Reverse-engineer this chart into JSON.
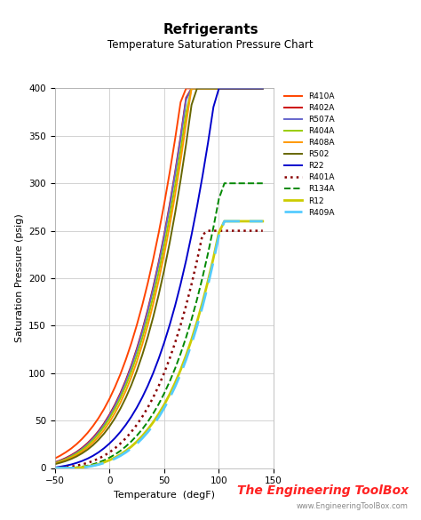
{
  "title": "Refrigerants",
  "subtitle": "Temperature Saturation Pressure Chart",
  "xlabel": "Temperature  (degF)",
  "ylabel": "Saturation Pressure (psig)",
  "xlim": [
    -50,
    150
  ],
  "ylim": [
    0,
    400
  ],
  "xticks": [
    -50,
    0,
    50,
    100,
    150
  ],
  "yticks": [
    0,
    50,
    100,
    150,
    200,
    250,
    300,
    350,
    400
  ],
  "series": [
    {
      "name": "R410A",
      "color": "#FF4400",
      "linestyle": "-",
      "linewidth": 1.4,
      "temps": [
        -50,
        -45,
        -40,
        -35,
        -30,
        -25,
        -20,
        -15,
        -10,
        -5,
        0,
        5,
        10,
        15,
        20,
        25,
        30,
        35,
        40,
        45,
        50,
        55,
        60,
        65,
        70,
        75,
        80,
        85,
        90,
        95,
        100,
        105,
        110,
        115,
        120,
        125,
        130
      ],
      "pressures": [
        10.0,
        13.0,
        16.5,
        20.5,
        25.2,
        30.7,
        37.0,
        44.3,
        52.6,
        62.1,
        72.9,
        85.2,
        98.9,
        114.4,
        131.6,
        150.7,
        171.7,
        194.8,
        220.2,
        247.9,
        278.2,
        311.2,
        346.9,
        385.5,
        400,
        400,
        400,
        400,
        400,
        400,
        400,
        400,
        400,
        400,
        400,
        400,
        400
      ]
    },
    {
      "name": "R402A",
      "color": "#CC0000",
      "linestyle": "-",
      "linewidth": 1.4,
      "temps": [
        -50,
        -45,
        -40,
        -35,
        -30,
        -25,
        -20,
        -15,
        -10,
        -5,
        0,
        5,
        10,
        15,
        20,
        25,
        30,
        35,
        40,
        45,
        50,
        55,
        60,
        65,
        70,
        75,
        80,
        85,
        90,
        95,
        100,
        105,
        110,
        115,
        120,
        125,
        130,
        135,
        140
      ],
      "pressures": [
        6.0,
        8.0,
        10.5,
        13.5,
        17.0,
        21.2,
        26.2,
        32.0,
        38.9,
        46.9,
        56.2,
        66.8,
        78.9,
        92.7,
        108.2,
        125.7,
        145.2,
        166.8,
        190.7,
        217.0,
        245.8,
        277.3,
        311.7,
        349.2,
        390.0,
        400,
        400,
        400,
        400,
        400,
        400,
        400,
        400,
        400,
        400,
        400,
        400,
        400,
        400
      ]
    },
    {
      "name": "R507A",
      "color": "#6666CC",
      "linestyle": "-",
      "linewidth": 1.4,
      "temps": [
        -50,
        -45,
        -40,
        -35,
        -30,
        -25,
        -20,
        -15,
        -10,
        -5,
        0,
        5,
        10,
        15,
        20,
        25,
        30,
        35,
        40,
        45,
        50,
        55,
        60,
        65,
        70,
        75,
        80,
        85,
        90,
        95,
        100,
        105,
        110,
        115,
        120,
        125,
        130,
        135,
        140
      ],
      "pressures": [
        5.5,
        7.5,
        9.8,
        12.7,
        16.2,
        20.3,
        25.2,
        31.0,
        37.8,
        45.8,
        55.0,
        65.5,
        77.5,
        91.2,
        106.7,
        124.1,
        143.5,
        165.1,
        188.9,
        215.2,
        243.9,
        275.4,
        309.7,
        347.2,
        387.9,
        400,
        400,
        400,
        400,
        400,
        400,
        400,
        400,
        400,
        400,
        400,
        400,
        400,
        400
      ]
    },
    {
      "name": "R404A",
      "color": "#99CC00",
      "linestyle": "-",
      "linewidth": 1.4,
      "temps": [
        -50,
        -45,
        -40,
        -35,
        -30,
        -25,
        -20,
        -15,
        -10,
        -5,
        0,
        5,
        10,
        15,
        20,
        25,
        30,
        35,
        40,
        45,
        50,
        55,
        60,
        65,
        70,
        75,
        80,
        85,
        90,
        95,
        100,
        105,
        110,
        115,
        120,
        125,
        130,
        135,
        140
      ],
      "pressures": [
        5.0,
        7.0,
        9.2,
        11.9,
        15.2,
        19.1,
        23.8,
        29.3,
        35.8,
        43.4,
        52.2,
        62.3,
        73.8,
        86.9,
        101.7,
        118.4,
        137.1,
        157.9,
        180.9,
        206.3,
        234.2,
        264.6,
        297.9,
        334.3,
        373.9,
        400,
        400,
        400,
        400,
        400,
        400,
        400,
        400,
        400,
        400,
        400,
        400,
        400,
        400
      ]
    },
    {
      "name": "R408A",
      "color": "#FF9900",
      "linestyle": "-",
      "linewidth": 1.4,
      "temps": [
        -50,
        -45,
        -40,
        -35,
        -30,
        -25,
        -20,
        -15,
        -10,
        -5,
        0,
        5,
        10,
        15,
        20,
        25,
        30,
        35,
        40,
        45,
        50,
        55,
        60,
        65,
        70,
        75,
        80,
        85,
        90,
        95,
        100,
        105,
        110,
        115,
        120,
        125,
        130,
        135,
        140
      ],
      "pressures": [
        4.5,
        6.2,
        8.2,
        10.7,
        13.7,
        17.3,
        21.6,
        26.8,
        32.9,
        40.0,
        48.3,
        57.9,
        68.9,
        81.5,
        95.8,
        112.0,
        130.2,
        150.5,
        173.0,
        197.8,
        225.2,
        255.2,
        288.1,
        324.0,
        363.2,
        400,
        400,
        400,
        400,
        400,
        400,
        400,
        400,
        400,
        400,
        400,
        400,
        400,
        400
      ]
    },
    {
      "name": "R502",
      "color": "#666600",
      "linestyle": "-",
      "linewidth": 1.4,
      "temps": [
        -50,
        -45,
        -40,
        -35,
        -30,
        -25,
        -20,
        -15,
        -10,
        -5,
        0,
        5,
        10,
        15,
        20,
        25,
        30,
        35,
        40,
        45,
        50,
        55,
        60,
        65,
        70,
        75,
        80,
        85,
        90,
        95,
        100,
        105,
        110,
        115,
        120,
        125,
        130,
        135,
        140
      ],
      "pressures": [
        4.0,
        5.5,
        7.3,
        9.5,
        12.2,
        15.5,
        19.4,
        24.1,
        29.7,
        36.2,
        43.7,
        52.5,
        62.6,
        74.2,
        87.4,
        102.4,
        119.2,
        138.1,
        159.2,
        182.7,
        208.7,
        237.3,
        268.8,
        303.4,
        341.3,
        382.7,
        400,
        400,
        400,
        400,
        400,
        400,
        400,
        400,
        400,
        400,
        400,
        400,
        400
      ]
    },
    {
      "name": "R22",
      "color": "#0000CC",
      "linestyle": "-",
      "linewidth": 1.4,
      "temps": [
        -50,
        -45,
        -40,
        -35,
        -30,
        -25,
        -20,
        -15,
        -10,
        -5,
        0,
        5,
        10,
        15,
        20,
        25,
        30,
        35,
        40,
        45,
        50,
        55,
        60,
        65,
        70,
        75,
        80,
        85,
        90,
        95,
        100,
        105,
        110,
        115,
        120,
        125,
        130,
        135,
        140
      ],
      "pressures": [
        0.6,
        1.4,
        2.4,
        3.7,
        5.4,
        7.4,
        9.9,
        12.9,
        16.5,
        20.8,
        25.8,
        31.5,
        38.1,
        45.6,
        54.1,
        63.7,
        74.5,
        86.6,
        100.2,
        115.3,
        132.1,
        150.7,
        171.2,
        193.8,
        218.6,
        245.8,
        275.4,
        307.6,
        342.5,
        380.4,
        400,
        400,
        400,
        400,
        400,
        400,
        400,
        400,
        400
      ]
    },
    {
      "name": "R401A",
      "color": "#880000",
      "linestyle": ":",
      "linewidth": 1.8,
      "temps": [
        -50,
        -45,
        -40,
        -35,
        -30,
        -25,
        -20,
        -15,
        -10,
        -5,
        0,
        5,
        10,
        15,
        20,
        25,
        30,
        35,
        40,
        45,
        50,
        55,
        60,
        65,
        70,
        75,
        80,
        85,
        90,
        95,
        100,
        105,
        110,
        115,
        120,
        125,
        130,
        135,
        140
      ],
      "pressures": [
        0.0,
        0.3,
        0.8,
        1.5,
        2.5,
        3.8,
        5.4,
        7.4,
        9.9,
        12.9,
        16.5,
        20.8,
        25.8,
        31.5,
        38.1,
        45.6,
        54.1,
        63.7,
        74.5,
        86.6,
        100.2,
        115.3,
        132.1,
        150.7,
        171.2,
        193.8,
        218.6,
        245.8,
        250,
        250,
        250,
        250,
        250,
        250,
        250,
        250,
        250,
        250,
        250
      ]
    },
    {
      "name": "R134A",
      "color": "#008800",
      "linestyle": "--",
      "linewidth": 1.4,
      "temps": [
        -50,
        -45,
        -40,
        -35,
        -30,
        -25,
        -20,
        -15,
        -10,
        -5,
        0,
        5,
        10,
        15,
        20,
        25,
        30,
        35,
        40,
        45,
        50,
        55,
        60,
        65,
        70,
        75,
        80,
        85,
        90,
        95,
        100,
        105,
        110,
        115,
        120,
        125,
        130,
        135,
        140
      ],
      "pressures": [
        0.0,
        0.0,
        0.0,
        0.2,
        0.7,
        1.4,
        2.5,
        3.9,
        5.8,
        8.1,
        10.9,
        14.2,
        18.1,
        22.8,
        28.1,
        34.1,
        40.9,
        48.7,
        57.5,
        67.4,
        78.6,
        91.1,
        105.0,
        120.5,
        137.7,
        156.7,
        177.7,
        200.8,
        226.1,
        253.7,
        283.7,
        300,
        300,
        300,
        300,
        300,
        300,
        300,
        300
      ]
    },
    {
      "name": "R12",
      "color": "#CCCC00",
      "linestyle": "-",
      "linewidth": 2.0,
      "temps": [
        -50,
        -45,
        -40,
        -35,
        -30,
        -25,
        -20,
        -15,
        -10,
        -5,
        0,
        5,
        10,
        15,
        20,
        25,
        30,
        35,
        40,
        45,
        50,
        55,
        60,
        65,
        70,
        75,
        80,
        85,
        90,
        95,
        100,
        105,
        110,
        115,
        120,
        125,
        130,
        135,
        140
      ],
      "pressures": [
        0.0,
        0.0,
        0.0,
        0.0,
        0.1,
        0.7,
        1.6,
        2.7,
        4.1,
        6.0,
        8.3,
        11.0,
        14.2,
        18.1,
        22.6,
        27.8,
        33.8,
        40.6,
        48.3,
        57.0,
        66.7,
        77.6,
        89.8,
        103.4,
        118.6,
        135.4,
        154.0,
        174.5,
        197.0,
        221.5,
        248.2,
        260,
        260,
        260,
        260,
        260,
        260,
        260,
        260
      ]
    },
    {
      "name": "R409A",
      "color": "#55CCFF",
      "linestyle": "--",
      "linewidth": 2.0,
      "dashes": [
        8,
        4
      ],
      "temps": [
        -50,
        -45,
        -40,
        -35,
        -30,
        -25,
        -20,
        -15,
        -10,
        -5,
        0,
        5,
        10,
        15,
        20,
        25,
        30,
        35,
        40,
        45,
        50,
        55,
        60,
        65,
        70,
        75,
        80,
        85,
        90,
        95,
        100,
        105,
        110,
        115,
        120,
        125,
        130,
        135,
        140
      ],
      "pressures": [
        0.0,
        0.0,
        0.0,
        0.0,
        0.0,
        0.5,
        1.3,
        2.3,
        3.6,
        5.3,
        7.4,
        9.9,
        12.9,
        16.5,
        20.7,
        25.6,
        31.3,
        37.8,
        45.2,
        53.6,
        63.1,
        73.8,
        85.8,
        99.2,
        114.2,
        130.9,
        149.5,
        170.1,
        192.8,
        217.8,
        245.1,
        260,
        260,
        260,
        260,
        260,
        260,
        260,
        260
      ]
    }
  ],
  "background_color": "#FFFFFF",
  "grid_color": "#CCCCCC",
  "watermark": "The Engineering ToolBox",
  "watermark_url": "www.EngineeringToolBox.com",
  "watermark_color": "#FF2222",
  "url_color": "#888888"
}
